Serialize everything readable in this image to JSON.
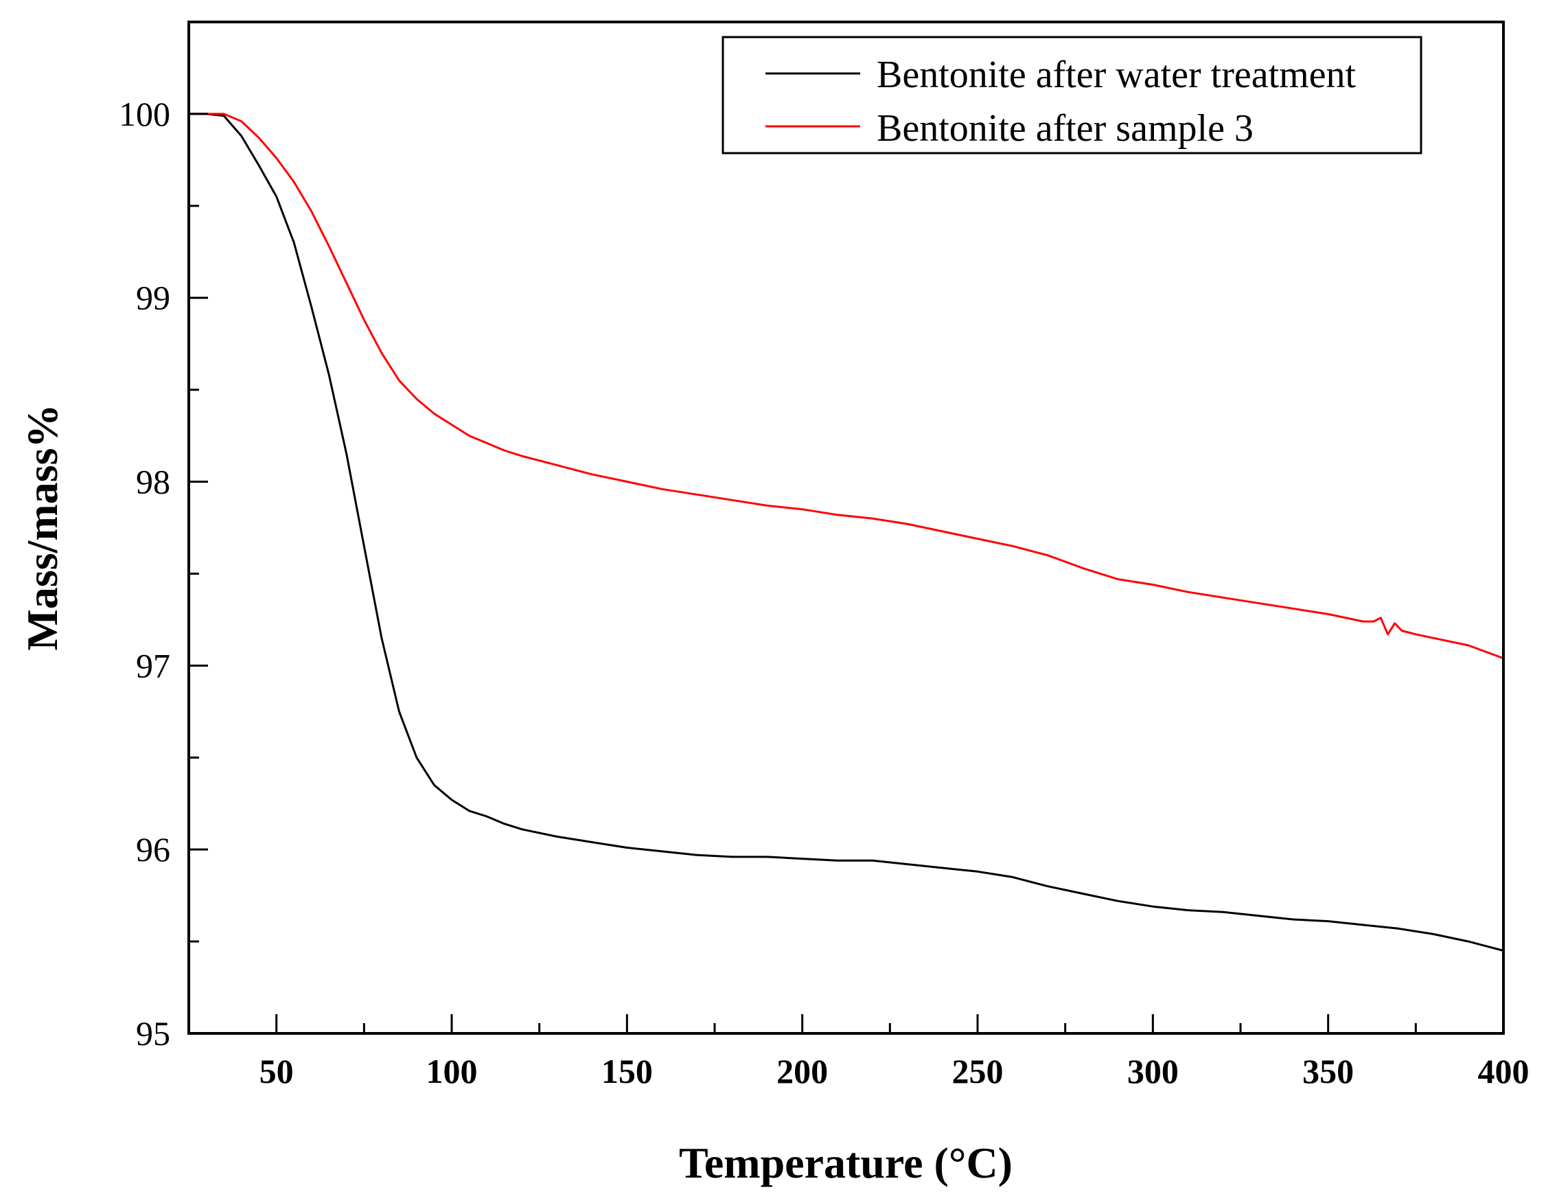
{
  "chart_data": {
    "type": "line",
    "title": "",
    "xlabel": "Temperature (°C)",
    "ylabel": "Mass/mass%",
    "xlim": [
      25,
      400
    ],
    "ylim": [
      95,
      100.5
    ],
    "xticks": [
      50,
      100,
      150,
      200,
      250,
      300,
      350,
      400
    ],
    "xtick_labels": [
      "50",
      "100",
      "150",
      "200",
      "250",
      "300",
      "350",
      "400"
    ],
    "xminor": [
      75,
      125,
      175,
      225,
      275,
      325,
      375
    ],
    "yticks": [
      95,
      96,
      97,
      98,
      99,
      100
    ],
    "ytick_labels": [
      "95",
      "96",
      "97",
      "98",
      "99",
      "100"
    ],
    "yminor": [
      95.5,
      96.5,
      97.5,
      98.5,
      99.5
    ],
    "grid": false,
    "legend_position": "top-right",
    "series": [
      {
        "name": "Bentonite after water treatment",
        "color": "#000000",
        "x": [
          25,
          30,
          35,
          40,
          45,
          50,
          55,
          60,
          65,
          70,
          75,
          80,
          85,
          90,
          95,
          100,
          105,
          110,
          115,
          120,
          130,
          140,
          150,
          160,
          170,
          180,
          190,
          200,
          210,
          220,
          230,
          240,
          250,
          260,
          270,
          280,
          290,
          300,
          310,
          320,
          330,
          340,
          350,
          360,
          370,
          380,
          390,
          400
        ],
        "y": [
          100.0,
          100.0,
          99.99,
          99.88,
          99.72,
          99.55,
          99.3,
          98.95,
          98.58,
          98.15,
          97.65,
          97.15,
          96.75,
          96.5,
          96.35,
          96.27,
          96.21,
          96.18,
          96.14,
          96.11,
          96.07,
          96.04,
          96.01,
          95.99,
          95.97,
          95.96,
          95.96,
          95.95,
          95.94,
          95.94,
          95.92,
          95.9,
          95.88,
          95.85,
          95.8,
          95.76,
          95.72,
          95.69,
          95.67,
          95.66,
          95.64,
          95.62,
          95.61,
          95.59,
          95.57,
          95.54,
          95.5,
          95.45
        ]
      },
      {
        "name": "Bentonite after sample 3",
        "color": "#ff0000",
        "x": [
          25,
          30,
          35,
          40,
          45,
          50,
          55,
          60,
          65,
          70,
          75,
          80,
          85,
          90,
          95,
          100,
          105,
          110,
          115,
          120,
          130,
          140,
          150,
          160,
          170,
          180,
          190,
          200,
          210,
          220,
          230,
          240,
          250,
          260,
          270,
          280,
          290,
          300,
          310,
          320,
          330,
          340,
          350,
          360,
          363,
          365,
          367,
          369,
          371,
          375,
          380,
          390,
          400
        ],
        "y": [
          100.0,
          100.0,
          100.0,
          99.96,
          99.87,
          99.76,
          99.63,
          99.47,
          99.28,
          99.08,
          98.88,
          98.7,
          98.55,
          98.45,
          98.37,
          98.31,
          98.25,
          98.21,
          98.17,
          98.14,
          98.09,
          98.04,
          98.0,
          97.96,
          97.93,
          97.9,
          97.87,
          97.85,
          97.82,
          97.8,
          97.77,
          97.73,
          97.69,
          97.65,
          97.6,
          97.53,
          97.47,
          97.44,
          97.4,
          97.37,
          97.34,
          97.31,
          97.28,
          97.24,
          97.24,
          97.26,
          97.17,
          97.23,
          97.19,
          97.17,
          97.15,
          97.11,
          97.04
        ]
      }
    ]
  }
}
